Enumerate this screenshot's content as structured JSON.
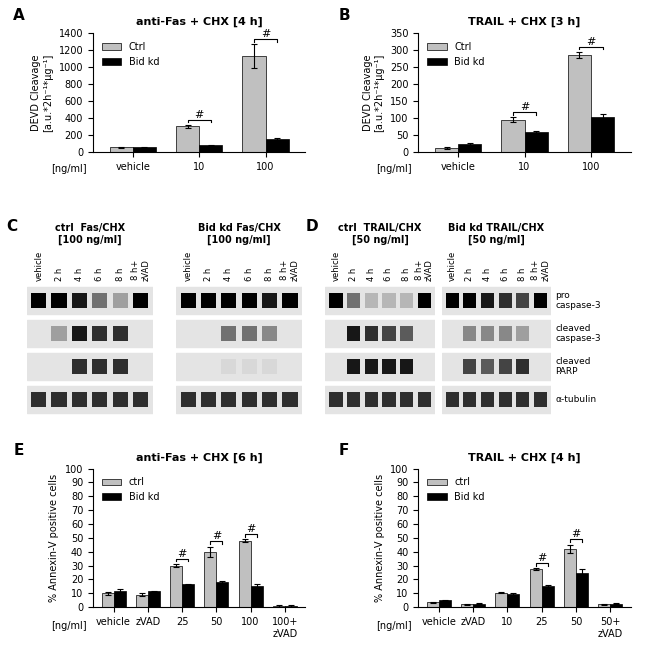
{
  "chart_data": [
    {
      "type": "bar",
      "panel": "A",
      "title": "anti-Fas + CHX [4 h]",
      "y_label": "DEVD Cleavage\n[a.u.*2h⁻¹*µg⁻¹]",
      "x_label": "[ng/ml]",
      "categories": [
        "vehicle",
        "10",
        "100"
      ],
      "series": [
        {
          "name": "Ctrl",
          "color": "#c0c0c0",
          "values": [
            55,
            300,
            1130
          ],
          "errors": [
            5,
            20,
            140
          ]
        },
        {
          "name": "Bid kd",
          "color": "#000000",
          "values": [
            55,
            75,
            145
          ],
          "errors": [
            5,
            5,
            20
          ]
        }
      ],
      "ylim": [
        0,
        1400
      ],
      "yticks": [
        0,
        200,
        400,
        600,
        800,
        1000,
        1200,
        1400
      ],
      "legend": "upper left",
      "significance": [
        {
          "category": "10",
          "label": "#"
        },
        {
          "category": "100",
          "label": "#"
        }
      ]
    },
    {
      "type": "bar",
      "panel": "B",
      "title": "TRAIL + CHX [3 h]",
      "y_label": "DEVD Cleavage\n[a.u.*2h⁻¹*µg⁻¹]",
      "x_label": "[ng/ml]",
      "categories": [
        "vehicle",
        "10",
        "100"
      ],
      "series": [
        {
          "name": "Ctrl",
          "color": "#c0c0c0",
          "values": [
            12,
            95,
            285
          ],
          "errors": [
            3,
            7,
            10
          ]
        },
        {
          "name": "Bid kd",
          "color": "#000000",
          "values": [
            22,
            57,
            102
          ],
          "errors": [
            5,
            3,
            10
          ]
        }
      ],
      "ylim": [
        0,
        350
      ],
      "yticks": [
        0,
        50,
        100,
        150,
        200,
        250,
        300,
        350
      ],
      "legend": "upper left",
      "significance": [
        {
          "category": "10",
          "label": "#"
        },
        {
          "category": "100",
          "label": "#"
        }
      ]
    },
    {
      "type": "blot",
      "panel": "C",
      "blots": [
        {
          "title": "ctrl  Fas/CHX\n[100 ng/ml]",
          "lanes": [
            "vehicle",
            "2 h",
            "4 h",
            "6 h",
            "8 h",
            "8 h+\nzVAD"
          ],
          "band_intensity": [
            [
              1.0,
              1.0,
              0.9,
              0.5,
              0.3,
              1.0
            ],
            [
              0.0,
              0.3,
              0.9,
              0.8,
              0.8,
              0.0
            ],
            [
              0.0,
              0.0,
              0.8,
              0.8,
              0.8,
              0.0
            ],
            [
              0.8,
              0.8,
              0.8,
              0.8,
              0.8,
              0.8
            ]
          ]
        },
        {
          "title": "Bid kd Fas/CHX\n[100 ng/ml]",
          "lanes": [
            "vehicle",
            "2 h",
            "4 h",
            "6 h",
            "8 h",
            "8 h+\nzVAD"
          ],
          "band_intensity": [
            [
              1.0,
              1.0,
              1.0,
              1.0,
              0.9,
              1.0
            ],
            [
              0.0,
              0.0,
              0.5,
              0.5,
              0.4,
              0.0
            ],
            [
              0.0,
              0.0,
              0.05,
              0.05,
              0.05,
              0.0
            ],
            [
              0.8,
              0.8,
              0.8,
              0.8,
              0.8,
              0.8
            ]
          ]
        }
      ]
    },
    {
      "type": "blot",
      "panel": "D",
      "row_labels": [
        "pro\ncaspase-3",
        "cleaved\ncaspase-3",
        "cleaved\nPARP",
        "α-tubulin"
      ],
      "blots": [
        {
          "title": "ctrl  TRAIL/CHX\n[50 ng/ml]",
          "lanes": [
            "vehicle",
            "2 h",
            "4 h",
            "6 h",
            "8 h",
            "8 h+\nzVAD"
          ],
          "band_intensity": [
            [
              1.0,
              0.5,
              0.2,
              0.2,
              0.2,
              1.0
            ],
            [
              0.0,
              0.9,
              0.8,
              0.7,
              0.6,
              0.0
            ],
            [
              0.0,
              0.9,
              0.9,
              0.9,
              0.9,
              0.0
            ],
            [
              0.8,
              0.8,
              0.8,
              0.8,
              0.8,
              0.8
            ]
          ]
        },
        {
          "title": "Bid kd TRAIL/CHX\n[50 ng/ml]",
          "lanes": [
            "vehicle",
            "2 h",
            "4 h",
            "6 h",
            "8 h",
            "8 h+\nzVAD"
          ],
          "band_intensity": [
            [
              1.0,
              1.0,
              0.9,
              0.8,
              0.7,
              1.0
            ],
            [
              0.0,
              0.4,
              0.4,
              0.4,
              0.3,
              0.0
            ],
            [
              0.0,
              0.7,
              0.6,
              0.7,
              0.8,
              0.0
            ],
            [
              0.8,
              0.8,
              0.8,
              0.8,
              0.8,
              0.8
            ]
          ]
        }
      ]
    },
    {
      "type": "bar",
      "panel": "E",
      "title": "anti-Fas + CHX [6 h]",
      "y_label": "% Annexin-V positive cells",
      "x_label": "[ng/ml]",
      "categories": [
        "vehicle",
        "zVAD",
        "25",
        "50",
        "100",
        "100+\nzVAD"
      ],
      "series": [
        {
          "name": "ctrl",
          "color": "#c0c0c0",
          "values": [
            10,
            9,
            30,
            40,
            48,
            1
          ],
          "errors": [
            1,
            1,
            1,
            3.5,
            1,
            0.5
          ]
        },
        {
          "name": "Bid kd",
          "color": "#000000",
          "values": [
            11.5,
            11.5,
            16.5,
            18,
            15.5,
            1
          ],
          "errors": [
            1.5,
            0.5,
            0.5,
            1,
            1,
            0.5
          ]
        }
      ],
      "ylim": [
        0,
        100
      ],
      "yticks": [
        0,
        10,
        20,
        30,
        40,
        50,
        60,
        70,
        80,
        90,
        100
      ],
      "legend": "upper left",
      "significance": [
        {
          "category": "25",
          "label": "#"
        },
        {
          "category": "50",
          "label": "#"
        },
        {
          "category": "100",
          "label": "#"
        }
      ]
    },
    {
      "type": "bar",
      "panel": "F",
      "title": "TRAIL + CHX [4 h]",
      "y_label": "% Annexin-V positive cells",
      "x_label": "[ng/ml]",
      "categories": [
        "vehicle",
        "zVAD",
        "10",
        "25",
        "50",
        "50+\nzVAD"
      ],
      "series": [
        {
          "name": "ctrl",
          "color": "#c0c0c0",
          "values": [
            3.5,
            2,
            10.5,
            27.5,
            42,
            2
          ],
          "errors": [
            0.5,
            0.5,
            0.5,
            0.5,
            3,
            0.3
          ]
        },
        {
          "name": "Bid kd",
          "color": "#000000",
          "values": [
            5,
            2.5,
            9.5,
            15,
            25,
            2.5
          ],
          "errors": [
            0.5,
            0.3,
            0.5,
            1,
            2.5,
            0.3
          ]
        }
      ],
      "ylim": [
        0,
        100
      ],
      "yticks": [
        0,
        10,
        20,
        30,
        40,
        50,
        60,
        70,
        80,
        90,
        100
      ],
      "legend": "upper left",
      "significance": [
        {
          "category": "25",
          "label": "#"
        },
        {
          "category": "50",
          "label": "#"
        }
      ]
    }
  ]
}
